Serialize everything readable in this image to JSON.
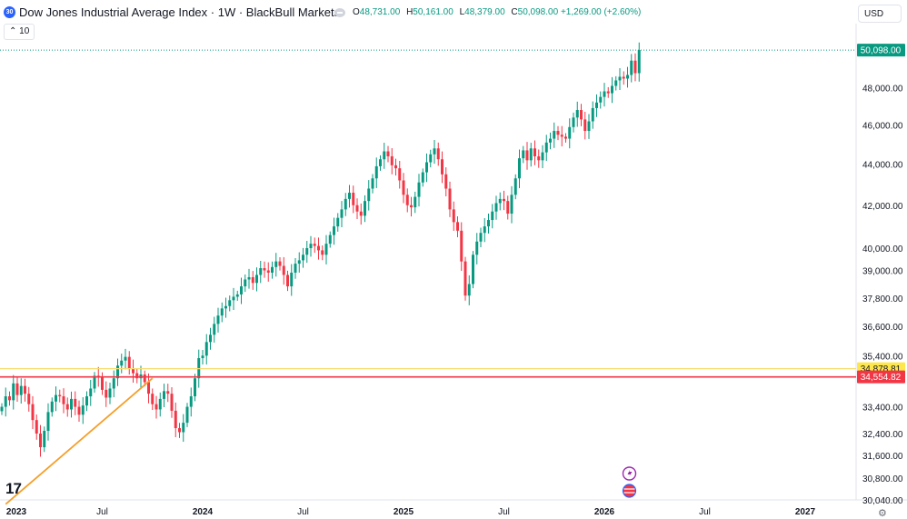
{
  "header": {
    "symbol_badge": "30",
    "title": "Dow Jones Industrial Average Index · 1W · BlackBull Markets",
    "open_key": "O",
    "open": "48,731.00",
    "high_key": "H",
    "high": "50,161.00",
    "low_key": "L",
    "low": "48,379.00",
    "close_key": "C",
    "close": "50,098.00",
    "change": "+1,269.00 (+2.60%)",
    "currency": "USD",
    "collapse_label": "10"
  },
  "logo_text": "17",
  "colors": {
    "up": "#089981",
    "down": "#f23645",
    "trendline": "#f59f2a",
    "support_line": "#f23645",
    "resistance_line": "#f7dc6f",
    "last_price_bg": "#089981",
    "level_yellow_bg": "#fde74c",
    "level_red_bg": "#f23645"
  },
  "chart_data": {
    "type": "candlestick",
    "title": "Dow Jones Industrial Average Index · 1W · BlackBull Markets",
    "scale": "logarithmic",
    "ylim": [
      30000,
      51500
    ],
    "y_ticks": [
      48000,
      46000,
      44000,
      42000,
      40000,
      39000,
      37800,
      36600,
      35400,
      33400,
      32400,
      31600,
      30800,
      30040
    ],
    "y_tick_labels": [
      "48,000.00",
      "46,000.00",
      "44,000.00",
      "42,000.00",
      "40,000.00",
      "39,000.00",
      "37,800.00",
      "36,600.00",
      "35,400.00",
      "33,400.00",
      "32,400.00",
      "31,600.00",
      "30,800.00",
      "30,040.00"
    ],
    "x_labels": [
      "2023",
      "Jul",
      "2024",
      "Jul",
      "2025",
      "Jul",
      "2026",
      "Jul",
      "2027"
    ],
    "x_label_weeks": [
      0,
      26,
      52,
      78,
      104,
      130,
      156,
      182,
      208
    ],
    "bold_x_labels": [
      "2023",
      "2024",
      "2025",
      "2026",
      "2027"
    ],
    "last_price": 50098,
    "last_price_label": "50,098.00",
    "horizontal_levels": [
      {
        "value": 34878.81,
        "label": "34,878.81",
        "style": "yellow"
      },
      {
        "value": 34554.82,
        "label": "34,554.82",
        "style": "red"
      }
    ],
    "trendline": {
      "from": {
        "week": 1,
        "price": 29900
      },
      "to": {
        "week": 39,
        "price": 34500
      }
    },
    "weekly_closes": [
      33400,
      33800,
      33650,
      34300,
      33850,
      34200,
      33900,
      33500,
      32900,
      32400,
      31900,
      32500,
      33200,
      33600,
      33850,
      33800,
      33500,
      33300,
      33700,
      33400,
      33100,
      33450,
      33800,
      34100,
      34600,
      34550,
      34050,
      33750,
      34100,
      34500,
      35000,
      35200,
      35350,
      34900,
      34700,
      34500,
      34650,
      34350,
      33900,
      33500,
      33300,
      33700,
      34000,
      33900,
      33250,
      32600,
      32450,
      32800,
      33400,
      33800,
      34500,
      35300,
      35400,
      35950,
      36250,
      36700,
      37050,
      37350,
      37450,
      37700,
      37850,
      37950,
      38300,
      38600,
      38700,
      38450,
      38800,
      39100,
      39000,
      38900,
      39150,
      39400,
      39200,
      38800,
      38300,
      38900,
      39300,
      39450,
      39700,
      40000,
      40200,
      40100,
      39900,
      39700,
      40200,
      40600,
      41000,
      41400,
      41800,
      42300,
      42600,
      42000,
      41700,
      41500,
      42200,
      42800,
      43300,
      43900,
      44250,
      44650,
      44400,
      43950,
      43800,
      43200,
      42500,
      42000,
      41900,
      42400,
      43100,
      43600,
      44100,
      44500,
      44800,
      44250,
      43500,
      42800,
      41800,
      41200,
      40800,
      39400,
      37900,
      38400,
      39700,
      40300,
      40700,
      41000,
      41300,
      41700,
      42100,
      42300,
      42200,
      41600,
      42500,
      43300,
      44300,
      44700,
      44200,
      44800,
      44400,
      44200,
      44600,
      45100,
      45300,
      45700,
      45500,
      45400,
      45300,
      45900,
      46400,
      46800,
      46300,
      45700,
      46200,
      46900,
      47200,
      47500,
      47800,
      47700,
      48100,
      48400,
      48600,
      48500,
      48700,
      49500,
      48800,
      50098
    ]
  }
}
